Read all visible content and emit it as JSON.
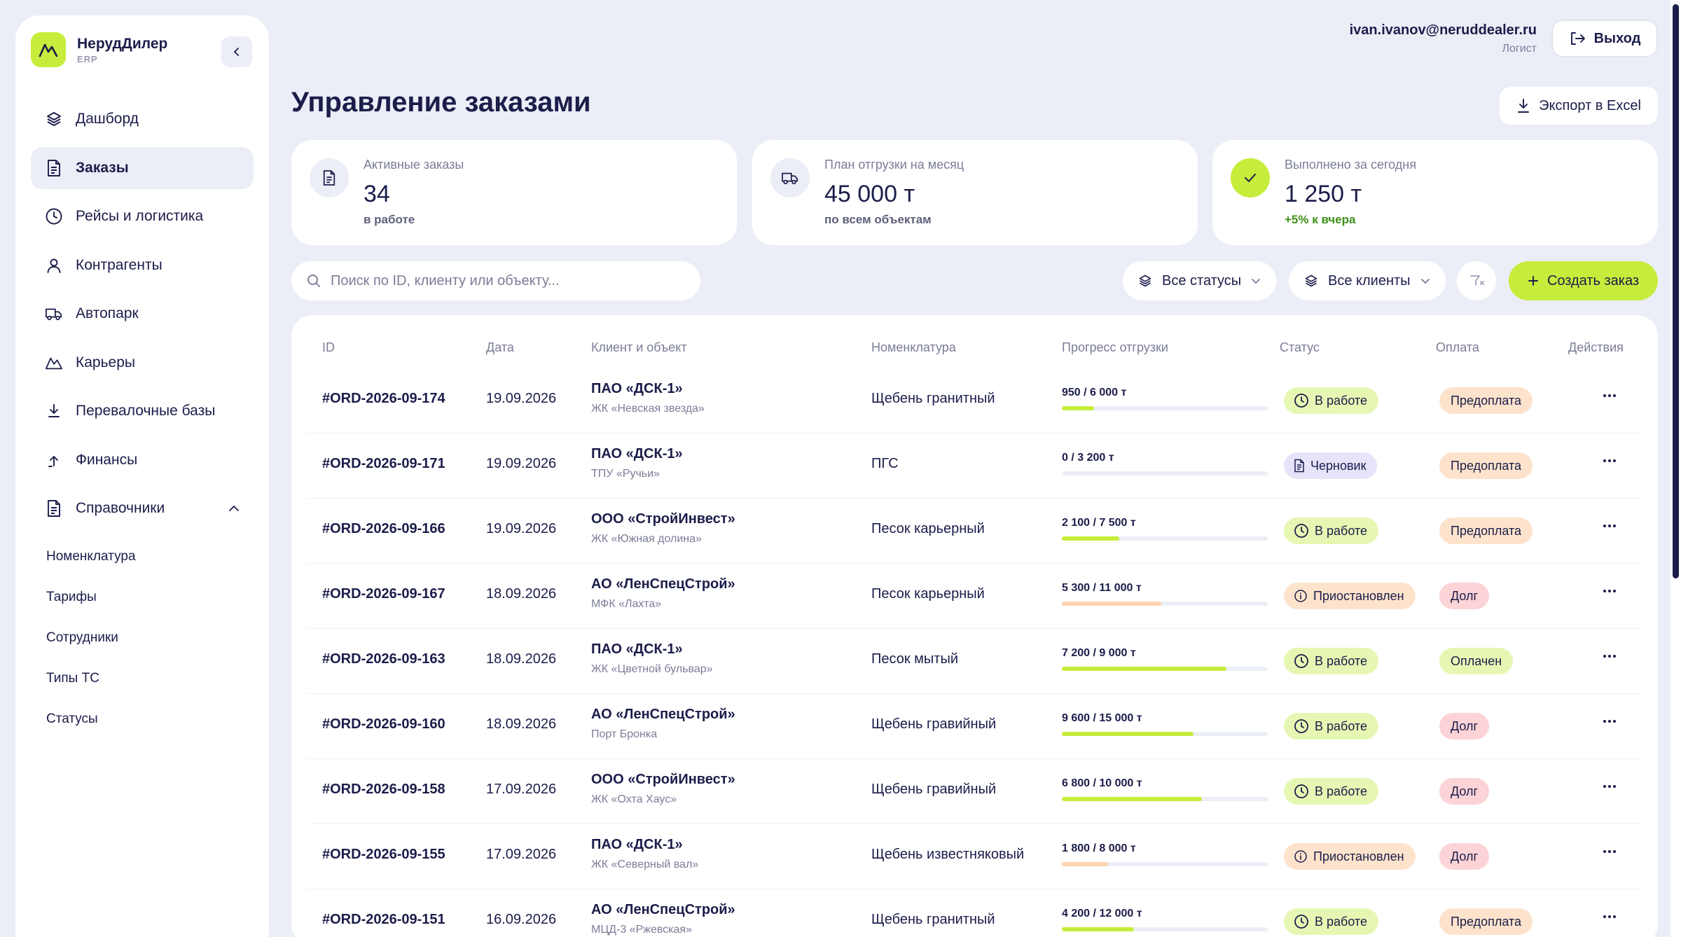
{
  "app": {
    "name": "НерудДилер",
    "sub": "ERP"
  },
  "nav": {
    "items": [
      {
        "label": "Дашборд"
      },
      {
        "label": "Заказы"
      },
      {
        "label": "Рейсы и логистика"
      },
      {
        "label": "Контрагенты"
      },
      {
        "label": "Автопарк"
      },
      {
        "label": "Карьеры"
      },
      {
        "label": "Перевалочные базы"
      },
      {
        "label": "Финансы"
      },
      {
        "label": "Справочники"
      }
    ],
    "sub": [
      {
        "label": "Номенклатура"
      },
      {
        "label": "Тарифы"
      },
      {
        "label": "Сотрудники"
      },
      {
        "label": "Типы ТС"
      },
      {
        "label": "Статусы"
      }
    ]
  },
  "user": {
    "email": "ivan.ivanov@neruddealer.ru",
    "role": "Логист",
    "logout": "Выход"
  },
  "page": {
    "title": "Управление заказами",
    "export": "Экспорт в Excel"
  },
  "stats": [
    {
      "label": "Активные заказы",
      "value": "34",
      "note": "в работе"
    },
    {
      "label": "План отгрузки на месяц",
      "value": "45 000 т",
      "note": "по всем объектам"
    },
    {
      "label": "Выполнено за сегодня",
      "value": "1 250 т",
      "note": "+5% к вчера"
    }
  ],
  "toolbar": {
    "search_placeholder": "Поиск по ID, клиенту или объекту...",
    "status_filter": "Все статусы",
    "client_filter": "Все клиенты",
    "create": "Создать заказ"
  },
  "table": {
    "headers": {
      "id": "ID",
      "date": "Дата",
      "client": "Клиент и объект",
      "nom": "Номенклатура",
      "progress": "Прогресс отгрузки",
      "status": "Статус",
      "payment": "Оплата",
      "actions": "Действия"
    },
    "rows": [
      {
        "id": "#ORD-2026-09-174",
        "date": "19.09.2026",
        "client": "ПАО «ДСК-1»",
        "object": "ЖК «Невская звезда»",
        "nom": "Щебень гранитный",
        "progress": "950 / 6 000 т",
        "pct": 0.158,
        "status": "В работе",
        "payment": "Предоплата"
      },
      {
        "id": "#ORD-2026-09-171",
        "date": "19.09.2026",
        "client": "ПАО «ДСК-1»",
        "object": "ТПУ «Ручьи»",
        "nom": "ПГС",
        "progress": "0 / 3 200 т",
        "pct": 0,
        "status": "Черновик",
        "payment": "Предоплата"
      },
      {
        "id": "#ORD-2026-09-166",
        "date": "19.09.2026",
        "client": "ООО «СтройИнвест»",
        "object": "ЖК «Южная долина»",
        "nom": "Песок карьерный",
        "progress": "2 100 / 7 500 т",
        "pct": 0.28,
        "status": "В работе",
        "payment": "Предоплата"
      },
      {
        "id": "#ORD-2026-09-167",
        "date": "18.09.2026",
        "client": "АО «ЛенСпецСтрой»",
        "object": "МФК «Лахта»",
        "nom": "Песок карьерный",
        "progress": "5 300 / 11 000 т",
        "pct": 0.482,
        "status": "Приостановлен",
        "payment": "Долг"
      },
      {
        "id": "#ORD-2026-09-163",
        "date": "18.09.2026",
        "client": "ПАО «ДСК-1»",
        "object": "ЖК «Цветной бульвар»",
        "nom": "Песок мытый",
        "progress": "7 200 / 9 000 т",
        "pct": 0.8,
        "status": "В работе",
        "payment": "Оплачен"
      },
      {
        "id": "#ORD-2026-09-160",
        "date": "18.09.2026",
        "client": "АО «ЛенСпецСтрой»",
        "object": "Порт Бронка",
        "nom": "Щебень гравийный",
        "progress": "9 600 / 15 000 т",
        "pct": 0.64,
        "status": "В работе",
        "payment": "Долг"
      },
      {
        "id": "#ORD-2026-09-158",
        "date": "17.09.2026",
        "client": "ООО «СтройИнвест»",
        "object": "ЖК «Охта Хаус»",
        "nom": "Щебень гравийный",
        "progress": "6 800 / 10 000 т",
        "pct": 0.68,
        "status": "В работе",
        "payment": "Долг"
      },
      {
        "id": "#ORD-2026-09-155",
        "date": "17.09.2026",
        "client": "ПАО «ДСК-1»",
        "object": "ЖК «Северный вал»",
        "nom": "Щебень известняковый",
        "progress": "1 800 / 8 000 т",
        "pct": 0.225,
        "status": "Приостановлен",
        "payment": "Долг"
      },
      {
        "id": "#ORD-2026-09-151",
        "date": "16.09.2026",
        "client": "АО «ЛенСпецСтрой»",
        "object": "МЦД-3 «Ржевская»",
        "nom": "Щебень гранитный",
        "progress": "4 200 / 12 000 т",
        "pct": 0.35,
        "status": "В работе",
        "payment": "Предоплата"
      }
    ]
  },
  "colors": {
    "accent": "#c6ed3b",
    "text": "#1b1d4a",
    "muted": "#7b7d98",
    "bg": "#eceef7",
    "progress_paused": "#fcd3b0"
  }
}
